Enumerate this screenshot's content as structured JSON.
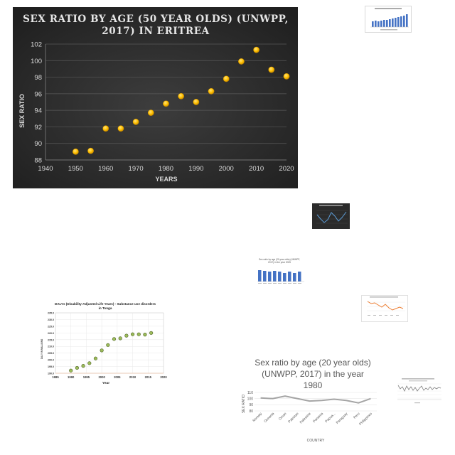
{
  "main_chart": {
    "title_line1": "SEX RATIO BY AGE (50 YEAR OLDS) (UNWPP,",
    "title_line2": "2017) IN ERITREA",
    "colors": {
      "background": "#333333",
      "point": "#ffc000",
      "grid": "#5a5a5a",
      "text": "#d9d9d9"
    }
  },
  "tonga_chart": {
    "title_line1": "DALYs (Disability-Adjusted Life Years) - Substance use disorders",
    "title_line2": "in Tonga"
  },
  "bar_chart_2019": {
    "title_line1": "Sex ratio by age (20 year olds) (UNWPP,",
    "title_line2": "2017) in the year 2025"
  },
  "sex_ratio_1980": {
    "title_line1": "Sex ratio by age (20 year olds)",
    "title_line2": "(UNWPP, 2017) in the year",
    "title_line3": "1980"
  },
  "chart_data": [
    {
      "type": "scatter",
      "title": "SEX RATIO BY AGE (50 YEAR OLDS) (UNWPP, 2017) IN ERITREA",
      "xlabel": "YEARS",
      "ylabel": "SEX RATIO",
      "xlim": [
        1940,
        2020
      ],
      "ylim": [
        88,
        102
      ],
      "xticks": [
        "1940",
        "1950",
        "1960",
        "1970",
        "1980",
        "1990",
        "2000",
        "2010",
        "2020"
      ],
      "yticks": [
        "88",
        "90",
        "92",
        "94",
        "96",
        "98",
        "100",
        "102"
      ],
      "grid": true,
      "series": [
        {
          "x": [
            1950,
            1955,
            1960,
            1965,
            1970,
            1975,
            1980,
            1985,
            1990,
            1995,
            2000,
            2005,
            2010,
            2015,
            2020
          ],
          "y": [
            89.0,
            89.1,
            91.8,
            91.8,
            92.6,
            93.7,
            94.8,
            95.7,
            95.0,
            96.3,
            97.8,
            99.9,
            101.3,
            98.9,
            98.1
          ]
        }
      ]
    },
    {
      "type": "scatter",
      "title": "DALYs (Disability-Adjusted Life Years) - Substance use disorders in Tonga",
      "xlabel": "Year",
      "ylabel": "DALY IN MILLIONS",
      "xlim": [
        1985,
        2020
      ],
      "ylim": [
        190,
        235
      ],
      "xticks": [
        "1985",
        "1990",
        "1995",
        "2000",
        "2005",
        "2010",
        "2015",
        "2020"
      ],
      "yticks": [
        "190.0",
        "195.0",
        "200.0",
        "205.0",
        "210.0",
        "215.0",
        "220.0",
        "225.0",
        "230.0",
        "235.0"
      ],
      "grid": true,
      "series": [
        {
          "x": [
            1990,
            1992,
            1994,
            1996,
            1998,
            2000,
            2002,
            2004,
            2006,
            2008,
            2010,
            2012,
            2014,
            2016
          ],
          "y": [
            192.0,
            194.0,
            195.5,
            197.5,
            201.0,
            207.0,
            211.0,
            215.5,
            216.0,
            218.0,
            219.0,
            219.0,
            218.8,
            220.0
          ]
        }
      ]
    },
    {
      "type": "line",
      "title": "Sex ratio by age (20 year olds) (UNWPP, 2017) in the year 1980",
      "xlabel": "COUNTRY",
      "ylabel": "SEX RATIO",
      "ylim": [
        80,
        110
      ],
      "yticks": [
        "80",
        "90",
        "100",
        "110"
      ],
      "categories": [
        "Norway",
        "Oceania",
        "Oman",
        "Pakistan",
        "Palestine",
        "Panama",
        "Papua...",
        "Paraguay",
        "Peru",
        "Philippines"
      ],
      "series": [
        {
          "values": [
            101,
            100,
            104,
            100,
            96,
            97,
            99,
            97,
            93,
            100
          ]
        }
      ]
    }
  ]
}
